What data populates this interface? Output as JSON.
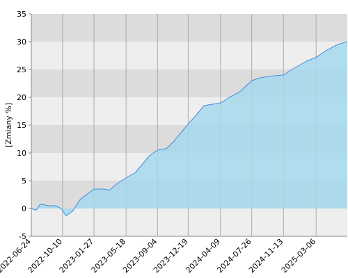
{
  "chart_data": {
    "type": "area",
    "y_label": "[Zmiany %]",
    "x": [
      "2022-06-24",
      "2022-07-11",
      "2022-07-25",
      "2022-08-23",
      "2022-09-16",
      "2022-10-05",
      "2022-10-22",
      "2022-11-14",
      "2022-12-08",
      "2023-01-01",
      "2023-01-27",
      "2023-03-01",
      "2023-03-21",
      "2023-04-18",
      "2023-05-18",
      "2023-06-20",
      "2023-07-14",
      "2023-08-07",
      "2023-09-04",
      "2023-10-05",
      "2023-10-29",
      "2023-11-22",
      "2023-12-19",
      "2024-01-19",
      "2024-02-12",
      "2024-04-09",
      "2024-05-10",
      "2024-06-15",
      "2024-07-26",
      "2024-08-24",
      "2024-09-28",
      "2024-11-13",
      "2024-12-12",
      "2025-02-01",
      "2025-03-06",
      "2025-04-13",
      "2025-05-19",
      "2025-06-22"
    ],
    "values": [
      0,
      -0.3,
      0.8,
      0.5,
      0.5,
      0,
      -1.3,
      -0.5,
      1.5,
      2.5,
      3.5,
      3.5,
      3.3,
      4.5,
      5.5,
      6.5,
      8,
      9.5,
      10.5,
      10.8,
      12,
      13.5,
      15.2,
      17,
      18.5,
      19,
      20,
      21,
      23,
      23.5,
      23.8,
      24,
      25,
      26.5,
      27.2,
      28.5,
      29.5,
      30
    ],
    "line_color": "#3d8fe0",
    "fill_color": "#a6d8ec",
    "xlim": [
      "2022-06-24",
      "2025-06-22"
    ],
    "xticks": [
      "2022-06-24",
      "2022-10-10",
      "2023-01-27",
      "2023-05-18",
      "2023-09-04",
      "2023-12-19",
      "2024-04-09",
      "2024-07-26",
      "2024-11-13",
      "2025-03-06"
    ],
    "ylim": [
      -5,
      35
    ],
    "yticks": [
      -5,
      0,
      5,
      10,
      15,
      20,
      25,
      30,
      35
    ],
    "grid": true
  }
}
